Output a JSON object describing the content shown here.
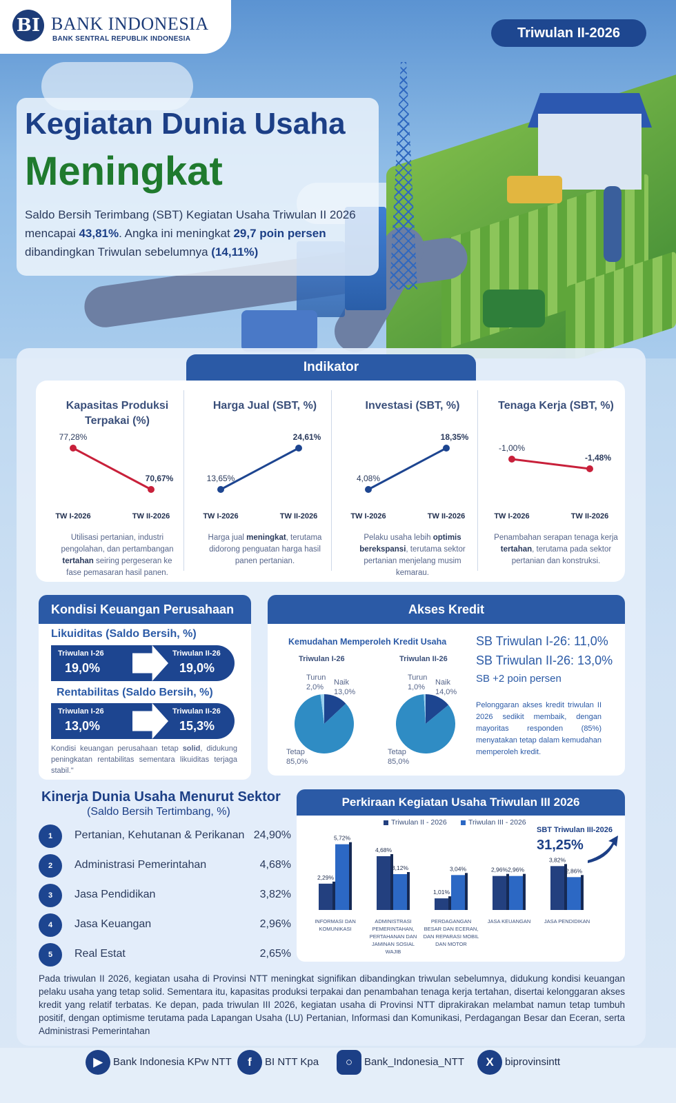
{
  "header": {
    "bank_name": "BANK INDONESIA",
    "bank_subtitle": "BANK SENTRAL REPUBLIK INDONESIA",
    "logo_glyph": "BI",
    "period": "Triwulan II-2026"
  },
  "hero": {
    "title_line1": "Kegiatan Dunia Usaha",
    "title_line2": "Meningkat",
    "lead_a": "Saldo Bersih Terimbang (SBT) Kegiatan Usaha Triwulan II 2026 mencapai ",
    "lead_b": "43,81%",
    "lead_c": ". Angka ini meningkat ",
    "lead_d": "29,7 poin persen",
    "lead_e": " dibandingkan Triwulan sebelumnya ",
    "lead_f": "(14,11%)"
  },
  "indikator": {
    "tab_label": "Indikator",
    "period_labels": [
      "TW I-2026",
      "TW II-2026"
    ],
    "items": [
      {
        "title": "Kapasitas Produksi Terpakai (%)",
        "v1": 77.28,
        "v2": 70.67,
        "label1": "77,28%",
        "label2": "70,67%",
        "trend": "down",
        "color": "#c8203a",
        "desc_a": "Utilisasi pertanian, industri pengolahan, dan pertambangan ",
        "desc_b": "tertahan",
        "desc_c": " seiring pergeseran ke fase pemasaran hasil panen."
      },
      {
        "title": "Harga Jual (SBT, %)",
        "v1": 13.65,
        "v2": 24.61,
        "label1": "13,65%",
        "label2": "24,61%",
        "trend": "up",
        "color": "#1d4590",
        "desc_a": "Harga jual ",
        "desc_b": "meningkat",
        "desc_c": ", terutama didorong penguatan harga hasil panen pertanian."
      },
      {
        "title": "Investasi (SBT, %)",
        "v1": 4.08,
        "v2": 18.35,
        "label1": "4,08%",
        "label2": "18,35%",
        "trend": "up",
        "color": "#1d4590",
        "desc_a": "Pelaku usaha lebih ",
        "desc_b": "optimis berekspansi",
        "desc_c": ", terutama sektor pertanian menjelang musim kemarau."
      },
      {
        "title": "Tenaga Kerja (SBT, %)",
        "v1": -1.0,
        "v2": -1.48,
        "label1": "-1,00%",
        "label2": "-1,48%",
        "trend": "flat",
        "color": "#c8203a",
        "desc_a": "Penambahan serapan tenaga kerja ",
        "desc_b": "tertahan",
        "desc_c": ", terutama pada sektor pertanian dan konstruksi."
      }
    ]
  },
  "keuangan": {
    "header": "Kondisi Keuangan Perusahaan",
    "likuiditas_title": "Likuiditas (Saldo Bersih, %)",
    "likuiditas": {
      "l1": "Triwulan I-26",
      "v1": "19,0%",
      "l2": "Triwulan II-26",
      "v2": "19,0%"
    },
    "rentabilitas_title": "Rentabilitas (Saldo Bersih, %)",
    "rentabilitas": {
      "l1": "Triwulan I-26",
      "v1": "13,0%",
      "l2": "Triwulan II-26",
      "v2": "15,3%"
    },
    "note_a": "Kondisi keuangan perusahaan tetap ",
    "note_b": "solid",
    "note_c": ", didukung peningkatan rentabilitas sementara likuiditas terjaga stabil.\""
  },
  "kredit": {
    "header": "Akses Kredit",
    "subtitle": "Kemudahan Memperoleh Kredit Usaha",
    "pies": [
      {
        "period": "Triwulan I-26",
        "turun": 2.0,
        "naik": 13.0,
        "tetap": 85.0,
        "turun_label": "Turun",
        "turun_val": "2,0%",
        "naik_label": "Naik",
        "naik_val": "13,0%",
        "tetap_label": "Tetap",
        "tetap_val": "85,0%"
      },
      {
        "period": "Triwulan II-26",
        "turun": 1.0,
        "naik": 14.0,
        "tetap": 85.0,
        "turun_label": "Turun",
        "turun_val": "1,0%",
        "naik_label": "Naik",
        "naik_val": "14,0%",
        "tetap_label": "Tetap",
        "tetap_val": "85,0%"
      }
    ],
    "sb1": "SB Triwulan I-26: 11,0%",
    "sb2": "SB Triwulan II-26: 13,0%",
    "sb3": "SB +2 poin persen",
    "note": "Pelonggaran akses kredit triwulan II 2026 sedikit membaik, dengan mayoritas responden (85%) menyatakan tetap dalam kemudahan memperoleh kredit.",
    "colors": {
      "tetap": "#2f8cc4",
      "naik": "#1d4590",
      "turun": "#9bd1ee"
    }
  },
  "sektor": {
    "title": "Kinerja Dunia Usaha Menurut Sektor",
    "subtitle": "(Saldo Bersih Tertimbang, %)",
    "items": [
      {
        "num": "1",
        "name": "Pertanian, Kehutanan & Perikanan",
        "value": "24,90%"
      },
      {
        "num": "2",
        "name": "Administrasi Pemerintahan",
        "value": "4,68%"
      },
      {
        "num": "3",
        "name": "Jasa Pendidikan",
        "value": "3,82%"
      },
      {
        "num": "4",
        "name": "Jasa Keuangan",
        "value": "2,96%"
      },
      {
        "num": "5",
        "name": "Real Estat",
        "value": "2,65%"
      }
    ]
  },
  "chart_data": {
    "type": "bar",
    "title": "Perkiraan Kegiatan Usaha Triwulan III 2026",
    "categories": [
      "INFORMASI DAN KOMUNIKASI",
      "ADMINISTRASI PEMERINTAHAN, PERTAHANAN DAN JAMINAN SOSIAL WAJIB",
      "PERDAGANGAN BESAR DAN ECERAN, DAN REPARASI MOBIL DAN MOTOR",
      "JASA KEUANGAN",
      "JASA PENDIDIKAN"
    ],
    "series": [
      {
        "name": "Triwulan II - 2026",
        "values": [
          2.29,
          4.68,
          1.01,
          2.96,
          3.82
        ],
        "labels": [
          "2,29%",
          "4,68%",
          "1,01%",
          "2,96%",
          "3,82%"
        ],
        "color": "#23407f"
      },
      {
        "name": "Triwulan III - 2026",
        "values": [
          5.72,
          3.12,
          3.04,
          2.96,
          2.86
        ],
        "labels": [
          "5,72%",
          "3,12%",
          "3,04%",
          "2,96%",
          "2,86%"
        ],
        "color": "#2c68c4"
      }
    ],
    "legend": "top",
    "ylim": [
      0,
      6
    ],
    "grid": false,
    "callout_label": "SBT Triwulan III-2026",
    "callout_value": "31,25%"
  },
  "summary": "Pada triwulan II 2026, kegiatan usaha di Provinsi NTT meningkat signifikan dibandingkan triwulan sebelumnya, didukung kondisi keuangan pelaku usaha yang tetap solid. Sementara itu, kapasitas produksi terpakai dan penambahan tenaga kerja tertahan, disertai kelonggaran akses kredit yang relatif terbatas. Ke depan, pada triwulan III 2026, kegiatan usaha di Provinsi NTT diprakirakan melambat namun tetap tumbuh positif, dengan optimisme terutama pada Lapangan Usaha (LU) Pertanian, Informasi dan Komunikasi, Perdagangan Besar dan Eceran, serta Administrasi Pemerintahan",
  "footer": {
    "youtube": "Bank Indonesia KPw NTT",
    "facebook": "BI NTT Kpa",
    "instagram": "Bank_Indonesia_NTT",
    "x": "biprovinsintt",
    "icons": [
      "youtube-icon",
      "facebook-icon",
      "instagram-icon",
      "x-icon"
    ]
  }
}
